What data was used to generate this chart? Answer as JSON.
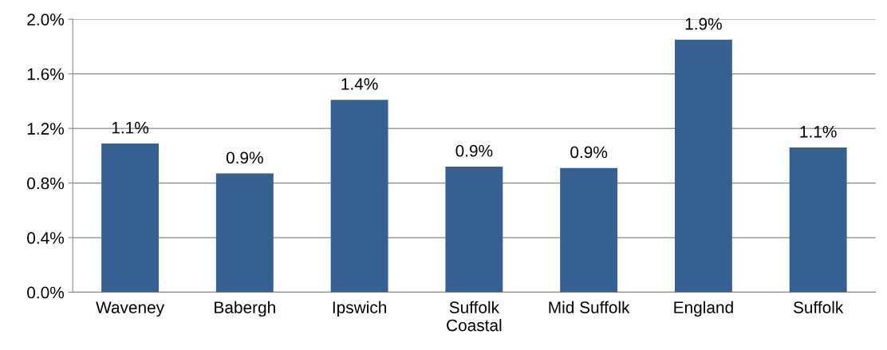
{
  "chart_data": {
    "type": "bar",
    "categories": [
      "Waveney",
      "Babergh",
      "Ipswich",
      "Suffolk\nCoastal",
      "Mid Suffolk",
      "England",
      "Suffolk"
    ],
    "values": [
      1.09,
      0.87,
      1.41,
      0.92,
      0.91,
      1.85,
      1.06
    ],
    "value_labels": [
      "1.1%",
      "0.9%",
      "1.4%",
      "0.9%",
      "0.9%",
      "1.9%",
      "1.1%"
    ],
    "color": "#376092",
    "ylim": [
      0,
      2.0
    ],
    "yticks": [
      {
        "value": 0,
        "label": "0.0%"
      },
      {
        "value": 0.4,
        "label": "0.4%"
      },
      {
        "value": 0.8,
        "label": "0.8%"
      },
      {
        "value": 1.2,
        "label": "1.2%"
      },
      {
        "value": 1.6,
        "label": "1.6%"
      },
      {
        "value": 2.0,
        "label": "2.0%"
      }
    ],
    "grid": "y"
  }
}
